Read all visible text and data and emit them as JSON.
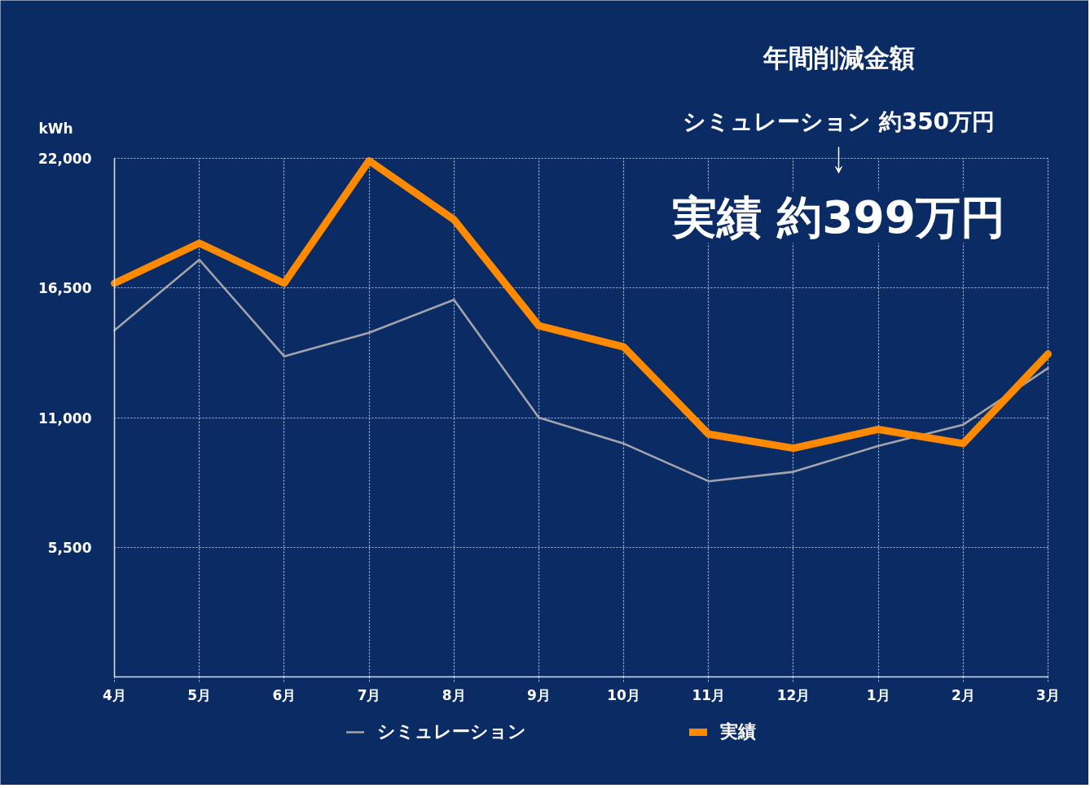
{
  "chart_data": {
    "type": "line",
    "ylabel": "kWh",
    "categories": [
      "4月",
      "5月",
      "6月",
      "7月",
      "8月",
      "9月",
      "10月",
      "11月",
      "12月",
      "1月",
      "2月",
      "3月"
    ],
    "series": [
      {
        "name": "シミュレーション",
        "color": "#a4a4ac",
        "values": [
          14700,
          17700,
          13600,
          14600,
          16000,
          11000,
          9900,
          8300,
          8700,
          9800,
          10700,
          13100
        ]
      },
      {
        "name": "実績",
        "color": "#ff8a00",
        "values": [
          16700,
          18400,
          16700,
          21900,
          19400,
          14900,
          14000,
          10300,
          9700,
          10500,
          9900,
          13700
        ]
      }
    ],
    "ylim": [
      0,
      22000
    ],
    "yticks": [
      {
        "value": 5500,
        "label": "5,500"
      },
      {
        "value": 11000,
        "label": "11,000"
      },
      {
        "value": 16500,
        "label": "16,500"
      },
      {
        "value": 22000,
        "label": "22,000"
      }
    ],
    "grid": true,
    "legend": "bottom",
    "annotations": [
      "年間削減金額",
      "シミュレーション 約350万円",
      "実績 約399万円"
    ]
  }
}
